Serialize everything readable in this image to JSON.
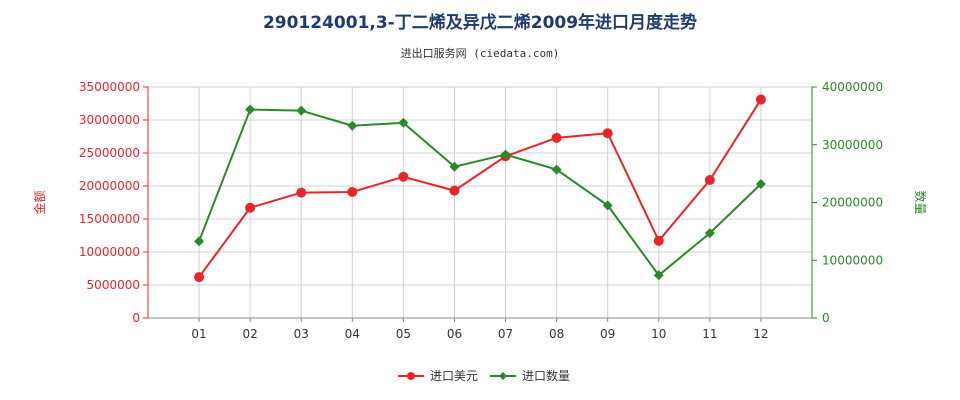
{
  "chart_data": {
    "type": "line",
    "title": "290124001,3-丁二烯及异戊二烯2009年进口月度走势",
    "subtitle": "进出口服务网 (ciedata.com)",
    "categories": [
      "01",
      "02",
      "03",
      "04",
      "05",
      "06",
      "07",
      "08",
      "09",
      "10",
      "11",
      "12"
    ],
    "left_axis": {
      "label": "金额",
      "range": [
        0,
        35000000
      ],
      "ticks": [
        "0",
        "5000000",
        "10000000",
        "15000000",
        "20000000",
        "25000000",
        "30000000",
        "35000000"
      ],
      "color": "#e8262a"
    },
    "right_axis": {
      "label": "数量",
      "range": [
        0,
        40000000
      ],
      "ticks": [
        "0",
        "10000000",
        "20000000",
        "30000000",
        "40000000"
      ],
      "color": "#2a8a2a"
    },
    "series": [
      {
        "name": "进口美元",
        "axis": "left",
        "color": "#e8262a",
        "marker": "circle",
        "values": [
          6200000,
          16700000,
          19000000,
          19100000,
          21400000,
          19300000,
          24500000,
          27300000,
          28000000,
          11700000,
          20900000,
          33100000
        ]
      },
      {
        "name": "进口数量",
        "axis": "right",
        "color": "#2a8a2a",
        "marker": "diamond",
        "values": [
          13300000,
          36100000,
          35900000,
          33300000,
          33800000,
          26200000,
          28300000,
          25700000,
          19500000,
          7400000,
          14700000,
          23200000
        ]
      }
    ],
    "grid": true,
    "legend_position": "bottom-center"
  }
}
